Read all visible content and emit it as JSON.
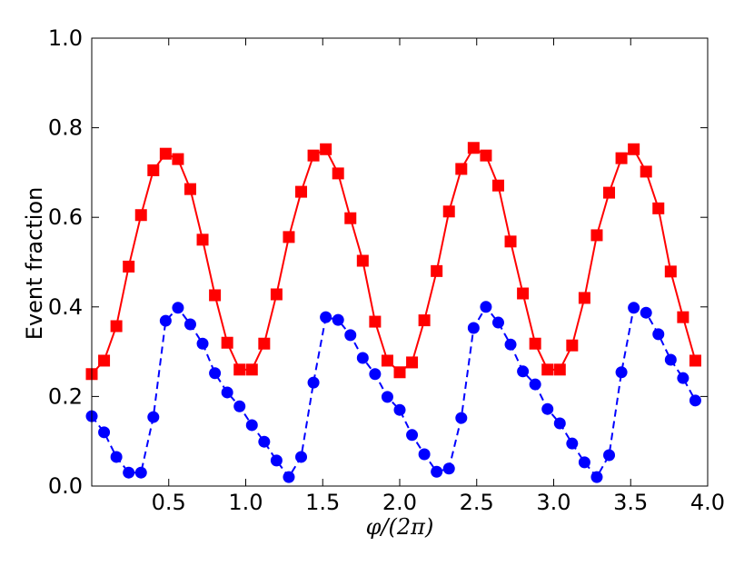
{
  "chart_data": {
    "type": "line",
    "xlabel": "φ/(2π)",
    "ylabel": "Event fraction",
    "x": [
      0.0,
      0.08,
      0.16,
      0.24,
      0.32,
      0.4,
      0.48,
      0.56,
      0.64,
      0.72,
      0.8,
      0.88,
      0.96,
      1.04,
      1.12,
      1.2,
      1.28,
      1.36,
      1.44,
      1.52,
      1.6,
      1.68,
      1.76,
      1.84,
      1.92,
      2.0,
      2.08,
      2.16,
      2.24,
      2.32,
      2.4,
      2.48,
      2.56,
      2.64,
      2.72,
      2.8,
      2.88,
      2.96,
      3.04,
      3.12,
      3.2,
      3.28,
      3.36,
      3.44,
      3.52,
      3.6,
      3.68,
      3.76,
      3.84,
      3.92
    ],
    "series": [
      {
        "color": "#ff0000",
        "marker": "square",
        "linestyle": "solid",
        "values": [
          0.25,
          0.28,
          0.357,
          0.49,
          0.605,
          0.705,
          0.742,
          0.73,
          0.663,
          0.55,
          0.426,
          0.32,
          0.26,
          0.26,
          0.318,
          0.428,
          0.556,
          0.657,
          0.738,
          0.752,
          0.698,
          0.598,
          0.503,
          0.367,
          0.28,
          0.254,
          0.276,
          0.37,
          0.48,
          0.613,
          0.708,
          0.755,
          0.738,
          0.671,
          0.546,
          0.43,
          0.318,
          0.26,
          0.26,
          0.314,
          0.42,
          0.56,
          0.655,
          0.732,
          0.752,
          0.702,
          0.62,
          0.479,
          0.377,
          0.28
        ]
      },
      {
        "color": "#0000ff",
        "marker": "circle",
        "linestyle": "dashed",
        "values": [
          0.156,
          0.12,
          0.065,
          0.03,
          0.03,
          0.154,
          0.369,
          0.398,
          0.361,
          0.318,
          0.252,
          0.209,
          0.178,
          0.136,
          0.099,
          0.057,
          0.02,
          0.065,
          0.231,
          0.377,
          0.371,
          0.337,
          0.286,
          0.25,
          0.199,
          0.17,
          0.114,
          0.071,
          0.032,
          0.039,
          0.152,
          0.353,
          0.4,
          0.365,
          0.316,
          0.256,
          0.227,
          0.172,
          0.14,
          0.095,
          0.053,
          0.02,
          0.069,
          0.254,
          0.398,
          0.387,
          0.339,
          0.282,
          0.241,
          0.191
        ]
      }
    ],
    "xlim": [
      0,
      4
    ],
    "ylim": [
      0,
      1
    ],
    "xticks": [
      0.5,
      {
        "value": 1,
        "label": "1.0"
      },
      1.5,
      {
        "value": 2,
        "label": "2.0"
      },
      2.5,
      {
        "value": 3,
        "label": "3.0"
      },
      3.5,
      {
        "value": 4,
        "label": "4.0"
      }
    ],
    "yticks": [
      {
        "value": 0,
        "label": "0.0"
      },
      0.2,
      0.4,
      0.6,
      0.8,
      {
        "value": 1,
        "label": "1.0"
      }
    ],
    "grid": false
  }
}
